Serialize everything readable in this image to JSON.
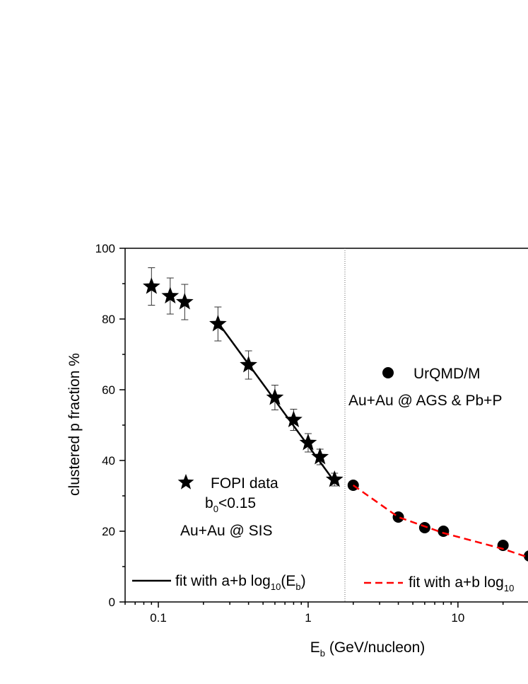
{
  "chart_data": {
    "type": "scatter",
    "x_label": [
      {
        "text": "E"
      },
      {
        "sub": "b"
      },
      {
        "text": " (GeV/nucleon)"
      }
    ],
    "y_label": "clustered p fraction %",
    "xscale": "log",
    "xlim": [
      0.06,
      30
    ],
    "ylim": [
      0,
      100
    ],
    "xticks": [
      0.1,
      1,
      10
    ],
    "xminorticks": [
      0.06,
      0.07,
      0.08,
      0.09,
      0.2,
      0.3,
      0.4,
      0.5,
      0.6,
      0.7,
      0.8,
      0.9,
      2,
      3,
      4,
      5,
      6,
      7,
      8,
      9,
      20,
      30
    ],
    "yticks": [
      0,
      20,
      40,
      60,
      80,
      100
    ],
    "yminorticks": [
      10,
      30,
      50,
      70,
      90
    ],
    "vline": 1.76,
    "series": [
      {
        "name": "FOPI data",
        "marker": "star",
        "color": "#000000",
        "x": [
          0.09,
          0.12,
          0.15,
          0.25,
          0.4,
          0.6,
          0.8,
          1.0,
          1.2,
          1.5
        ],
        "values": [
          89.2,
          86.5,
          84.8,
          78.6,
          67,
          57.8,
          51.5,
          45,
          41,
          34.6
        ],
        "errors": [
          5.3,
          5.1,
          5,
          4.8,
          4,
          3.5,
          3,
          2.6,
          2.2,
          1.8
        ]
      },
      {
        "name": "UrQMD/M",
        "marker": "circle",
        "color": "#000000",
        "x": [
          2,
          4,
          6,
          8,
          20,
          30
        ],
        "values": [
          33,
          24,
          21,
          20,
          16,
          13
        ]
      },
      {
        "name": [
          {
            "text": "fit with a+b log"
          },
          {
            "sub": "10"
          },
          {
            "text": "(E"
          },
          {
            "sub": "b"
          },
          {
            "text": ")"
          }
        ],
        "marker": "line",
        "dash": false,
        "color": "#000000",
        "x": [
          0.25,
          1.5
        ],
        "values": [
          79,
          34
        ]
      },
      {
        "name": [
          {
            "text": "fit with a+b log"
          },
          {
            "sub": "10"
          }
        ],
        "marker": "line",
        "dash": true,
        "color": "#ff0000",
        "x": [
          2,
          4,
          8,
          20,
          30
        ],
        "values": [
          33,
          24,
          19.5,
          15,
          12.5
        ]
      }
    ],
    "annotations": [
      [
        {
          "text": "b"
        },
        {
          "sub": "0"
        },
        {
          "text": "<0.15"
        }
      ],
      [
        {
          "text": "Au+Au @ SIS"
        }
      ],
      [
        {
          "text": "Au+Au @ AGS & Pb+P"
        }
      ]
    ]
  }
}
